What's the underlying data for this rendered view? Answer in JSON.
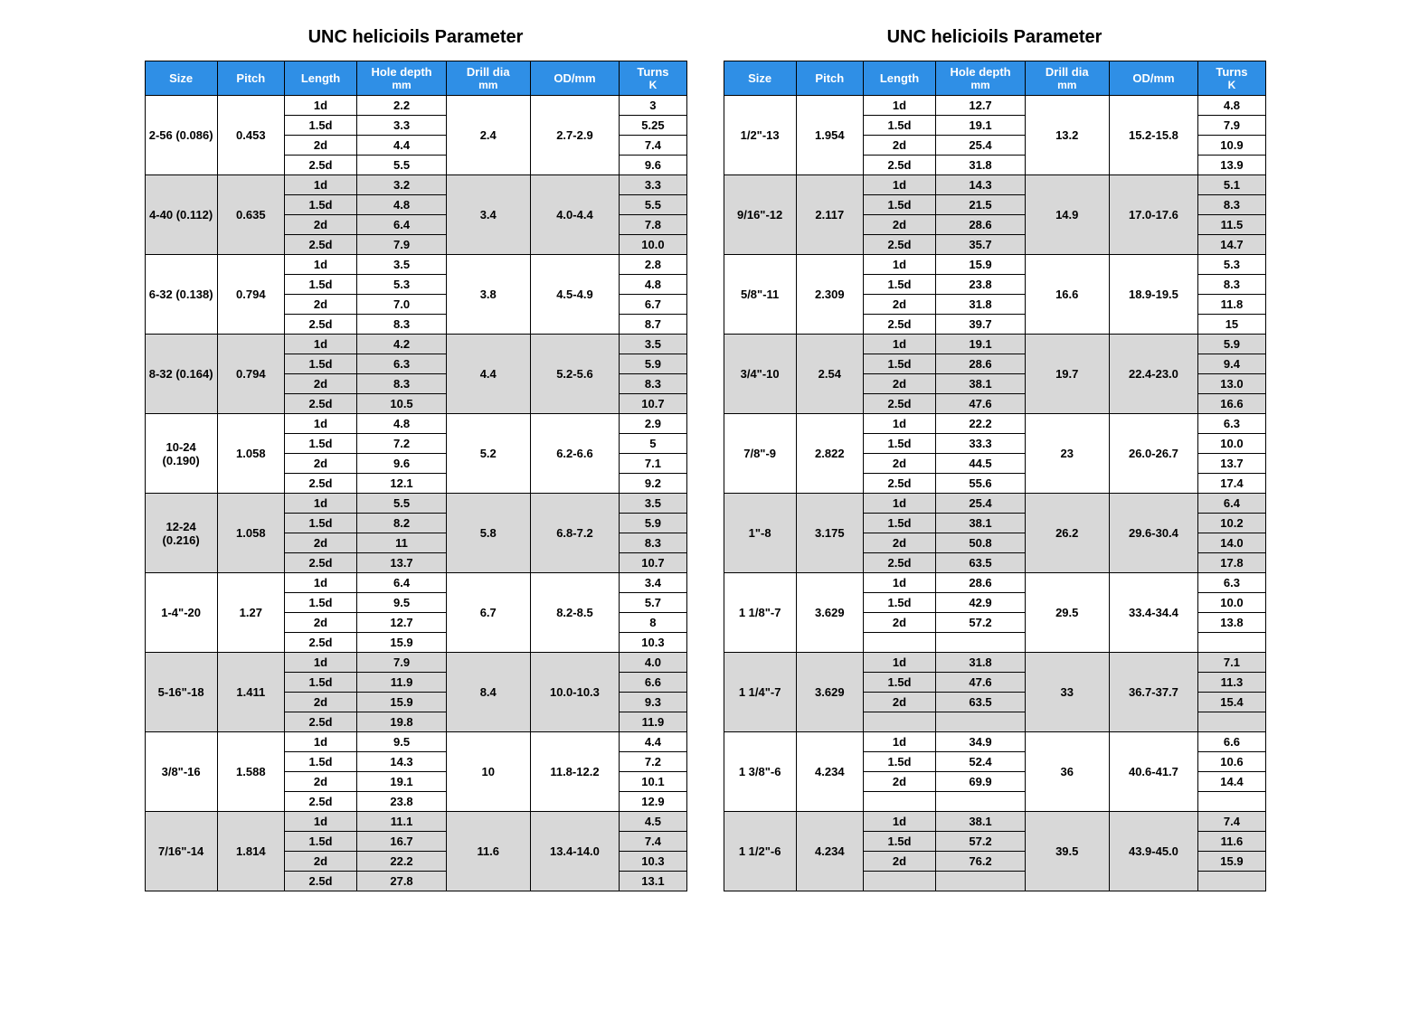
{
  "title": "UNC helicioils Parameter",
  "columns": [
    "Size",
    "Pitch",
    "Length",
    "Hole depth mm",
    "Drill dia mm",
    "OD/mm",
    "Turns K"
  ],
  "header_sub": {
    "3": "mm",
    "4": "mm",
    "6": "K"
  },
  "header_main": {
    "0": "Size",
    "1": "Pitch",
    "2": "Length",
    "3": "Hole depth",
    "4": "Drill dia",
    "5": "OD/mm",
    "6": "Turns"
  },
  "styling": {
    "header_bg": "#2f8fe6",
    "header_fg": "#ffffff",
    "row_alt_bg": "#d8d8d8",
    "row_bg": "#ffffff",
    "border_color": "#000000",
    "font_size_title": 20,
    "font_size_header": 13,
    "font_size_cell": 13,
    "font_weight_cell": "bold"
  },
  "tables": [
    {
      "groups": [
        {
          "size": "2-56 (0.086)",
          "pitch": "0.453",
          "drill": "2.4",
          "od": "2.7-2.9",
          "shade": false,
          "rows": [
            [
              "1d",
              "2.2",
              "3"
            ],
            [
              "1.5d",
              "3.3",
              "5.25"
            ],
            [
              "2d",
              "4.4",
              "7.4"
            ],
            [
              "2.5d",
              "5.5",
              "9.6"
            ]
          ]
        },
        {
          "size": "4-40 (0.112)",
          "pitch": "0.635",
          "drill": "3.4",
          "od": "4.0-4.4",
          "shade": true,
          "rows": [
            [
              "1d",
              "3.2",
              "3.3"
            ],
            [
              "1.5d",
              "4.8",
              "5.5"
            ],
            [
              "2d",
              "6.4",
              "7.8"
            ],
            [
              "2.5d",
              "7.9",
              "10.0"
            ]
          ]
        },
        {
          "size": "6-32 (0.138)",
          "pitch": "0.794",
          "drill": "3.8",
          "od": "4.5-4.9",
          "shade": false,
          "rows": [
            [
              "1d",
              "3.5",
              "2.8"
            ],
            [
              "1.5d",
              "5.3",
              "4.8"
            ],
            [
              "2d",
              "7.0",
              "6.7"
            ],
            [
              "2.5d",
              "8.3",
              "8.7"
            ]
          ]
        },
        {
          "size": "8-32 (0.164)",
          "pitch": "0.794",
          "drill": "4.4",
          "od": "5.2-5.6",
          "shade": true,
          "rows": [
            [
              "1d",
              "4.2",
              "3.5"
            ],
            [
              "1.5d",
              "6.3",
              "5.9"
            ],
            [
              "2d",
              "8.3",
              "8.3"
            ],
            [
              "2.5d",
              "10.5",
              "10.7"
            ]
          ]
        },
        {
          "size": "10-24 (0.190)",
          "pitch": "1.058",
          "drill": "5.2",
          "od": "6.2-6.6",
          "shade": false,
          "rows": [
            [
              "1d",
              "4.8",
              "2.9"
            ],
            [
              "1.5d",
              "7.2",
              "5"
            ],
            [
              "2d",
              "9.6",
              "7.1"
            ],
            [
              "2.5d",
              "12.1",
              "9.2"
            ]
          ]
        },
        {
          "size": "12-24 (0.216)",
          "pitch": "1.058",
          "drill": "5.8",
          "od": "6.8-7.2",
          "shade": true,
          "rows": [
            [
              "1d",
              "5.5",
              "3.5"
            ],
            [
              "1.5d",
              "8.2",
              "5.9"
            ],
            [
              "2d",
              "11",
              "8.3"
            ],
            [
              "2.5d",
              "13.7",
              "10.7"
            ]
          ]
        },
        {
          "size": "1-4\"-20",
          "pitch": "1.27",
          "drill": "6.7",
          "od": "8.2-8.5",
          "shade": false,
          "rows": [
            [
              "1d",
              "6.4",
              "3.4"
            ],
            [
              "1.5d",
              "9.5",
              "5.7"
            ],
            [
              "2d",
              "12.7",
              "8"
            ],
            [
              "2.5d",
              "15.9",
              "10.3"
            ]
          ]
        },
        {
          "size": "5-16\"-18",
          "pitch": "1.411",
          "drill": "8.4",
          "od": "10.0-10.3",
          "shade": true,
          "rows": [
            [
              "1d",
              "7.9",
              "4.0"
            ],
            [
              "1.5d",
              "11.9",
              "6.6"
            ],
            [
              "2d",
              "15.9",
              "9.3"
            ],
            [
              "2.5d",
              "19.8",
              "11.9"
            ]
          ]
        },
        {
          "size": "3/8\"-16",
          "pitch": "1.588",
          "drill": "10",
          "od": "11.8-12.2",
          "shade": false,
          "rows": [
            [
              "1d",
              "9.5",
              "4.4"
            ],
            [
              "1.5d",
              "14.3",
              "7.2"
            ],
            [
              "2d",
              "19.1",
              "10.1"
            ],
            [
              "2.5d",
              "23.8",
              "12.9"
            ]
          ]
        },
        {
          "size": "7/16\"-14",
          "pitch": "1.814",
          "drill": "11.6",
          "od": "13.4-14.0",
          "shade": true,
          "rows": [
            [
              "1d",
              "11.1",
              "4.5"
            ],
            [
              "1.5d",
              "16.7",
              "7.4"
            ],
            [
              "2d",
              "22.2",
              "10.3"
            ],
            [
              "2.5d",
              "27.8",
              "13.1"
            ]
          ]
        }
      ]
    },
    {
      "groups": [
        {
          "size": "1/2\"-13",
          "pitch": "1.954",
          "drill": "13.2",
          "od": "15.2-15.8",
          "shade": false,
          "rows": [
            [
              "1d",
              "12.7",
              "4.8"
            ],
            [
              "1.5d",
              "19.1",
              "7.9"
            ],
            [
              "2d",
              "25.4",
              "10.9"
            ],
            [
              "2.5d",
              "31.8",
              "13.9"
            ]
          ]
        },
        {
          "size": "9/16\"-12",
          "pitch": "2.117",
          "drill": "14.9",
          "od": "17.0-17.6",
          "shade": true,
          "rows": [
            [
              "1d",
              "14.3",
              "5.1"
            ],
            [
              "1.5d",
              "21.5",
              "8.3"
            ],
            [
              "2d",
              "28.6",
              "11.5"
            ],
            [
              "2.5d",
              "35.7",
              "14.7"
            ]
          ]
        },
        {
          "size": "5/8\"-11",
          "pitch": "2.309",
          "drill": "16.6",
          "od": "18.9-19.5",
          "shade": false,
          "rows": [
            [
              "1d",
              "15.9",
              "5.3"
            ],
            [
              "1.5d",
              "23.8",
              "8.3"
            ],
            [
              "2d",
              "31.8",
              "11.8"
            ],
            [
              "2.5d",
              "39.7",
              "15"
            ]
          ]
        },
        {
          "size": "3/4\"-10",
          "pitch": "2.54",
          "drill": "19.7",
          "od": "22.4-23.0",
          "shade": true,
          "rows": [
            [
              "1d",
              "19.1",
              "5.9"
            ],
            [
              "1.5d",
              "28.6",
              "9.4"
            ],
            [
              "2d",
              "38.1",
              "13.0"
            ],
            [
              "2.5d",
              "47.6",
              "16.6"
            ]
          ]
        },
        {
          "size": "7/8\"-9",
          "pitch": "2.822",
          "drill": "23",
          "od": "26.0-26.7",
          "shade": false,
          "rows": [
            [
              "1d",
              "22.2",
              "6.3"
            ],
            [
              "1.5d",
              "33.3",
              "10.0"
            ],
            [
              "2d",
              "44.5",
              "13.7"
            ],
            [
              "2.5d",
              "55.6",
              "17.4"
            ]
          ]
        },
        {
          "size": "1\"-8",
          "pitch": "3.175",
          "drill": "26.2",
          "od": "29.6-30.4",
          "shade": true,
          "rows": [
            [
              "1d",
              "25.4",
              "6.4"
            ],
            [
              "1.5d",
              "38.1",
              "10.2"
            ],
            [
              "2d",
              "50.8",
              "14.0"
            ],
            [
              "2.5d",
              "63.5",
              "17.8"
            ]
          ]
        },
        {
          "size": "1 1/8\"-7",
          "pitch": "3.629",
          "drill": "29.5",
          "od": "33.4-34.4",
          "shade": false,
          "rows": [
            [
              "1d",
              "28.6",
              "6.3"
            ],
            [
              "1.5d",
              "42.9",
              "10.0"
            ],
            [
              "2d",
              "57.2",
              "13.8"
            ],
            [
              "",
              "",
              ""
            ]
          ]
        },
        {
          "size": "1 1/4\"-7",
          "pitch": "3.629",
          "drill": "33",
          "od": "36.7-37.7",
          "shade": true,
          "rows": [
            [
              "1d",
              "31.8",
              "7.1"
            ],
            [
              "1.5d",
              "47.6",
              "11.3"
            ],
            [
              "2d",
              "63.5",
              "15.4"
            ],
            [
              "",
              "",
              ""
            ]
          ]
        },
        {
          "size": "1 3/8\"-6",
          "pitch": "4.234",
          "drill": "36",
          "od": "40.6-41.7",
          "shade": false,
          "rows": [
            [
              "1d",
              "34.9",
              "6.6"
            ],
            [
              "1.5d",
              "52.4",
              "10.6"
            ],
            [
              "2d",
              "69.9",
              "14.4"
            ],
            [
              "",
              "",
              ""
            ]
          ]
        },
        {
          "size": "1 1/2\"-6",
          "pitch": "4.234",
          "drill": "39.5",
          "od": "43.9-45.0",
          "shade": true,
          "rows": [
            [
              "1d",
              "38.1",
              "7.4"
            ],
            [
              "1.5d",
              "57.2",
              "11.6"
            ],
            [
              "2d",
              "76.2",
              "15.9"
            ],
            [
              "",
              "",
              ""
            ]
          ]
        }
      ]
    }
  ]
}
